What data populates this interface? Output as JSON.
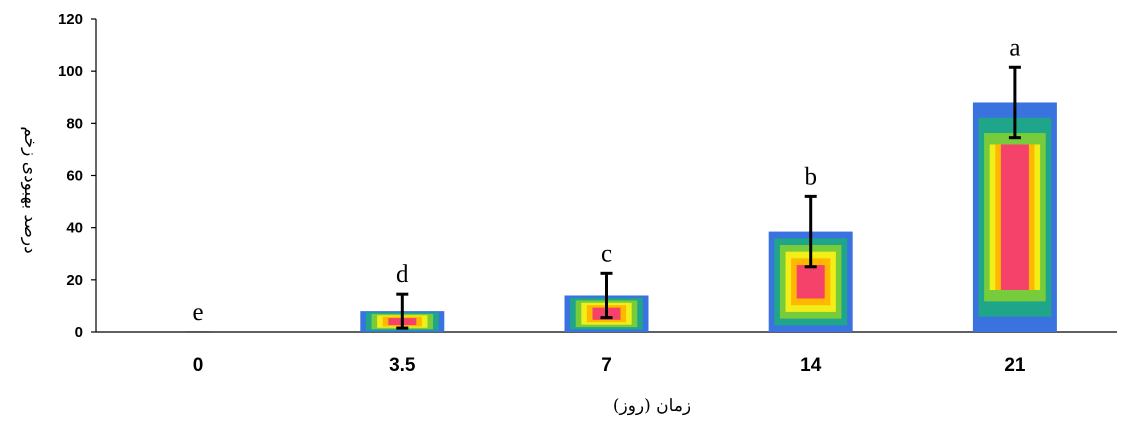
{
  "chart_data": {
    "type": "bar",
    "title": "",
    "xlabel": "زمان (روز)",
    "ylabel": "درصد بهبودی زخم",
    "categories": [
      "0",
      "3.5",
      "7",
      "14",
      "21"
    ],
    "series": [
      {
        "values": [
          0,
          8,
          14,
          38.5,
          88
        ],
        "error": [
          0,
          6.5,
          8.5,
          13.5,
          13.5
        ],
        "labels": [
          "e",
          "d",
          "c",
          "b",
          "a"
        ]
      }
    ],
    "ylim": [
      0,
      120
    ],
    "yticks": [
      "0",
      "20",
      "40",
      "60",
      "80",
      "100",
      "120"
    ],
    "grid": false,
    "legend": "none",
    "colors": {
      "ring_outer": "#3a73e0",
      "ring_2": "#1fa58a",
      "ring_3": "#76cc3a",
      "ring_4": "#f2ee18",
      "ring_5": "#ffb700",
      "ring_inner": "#f5426b",
      "axis": "#000000"
    }
  }
}
